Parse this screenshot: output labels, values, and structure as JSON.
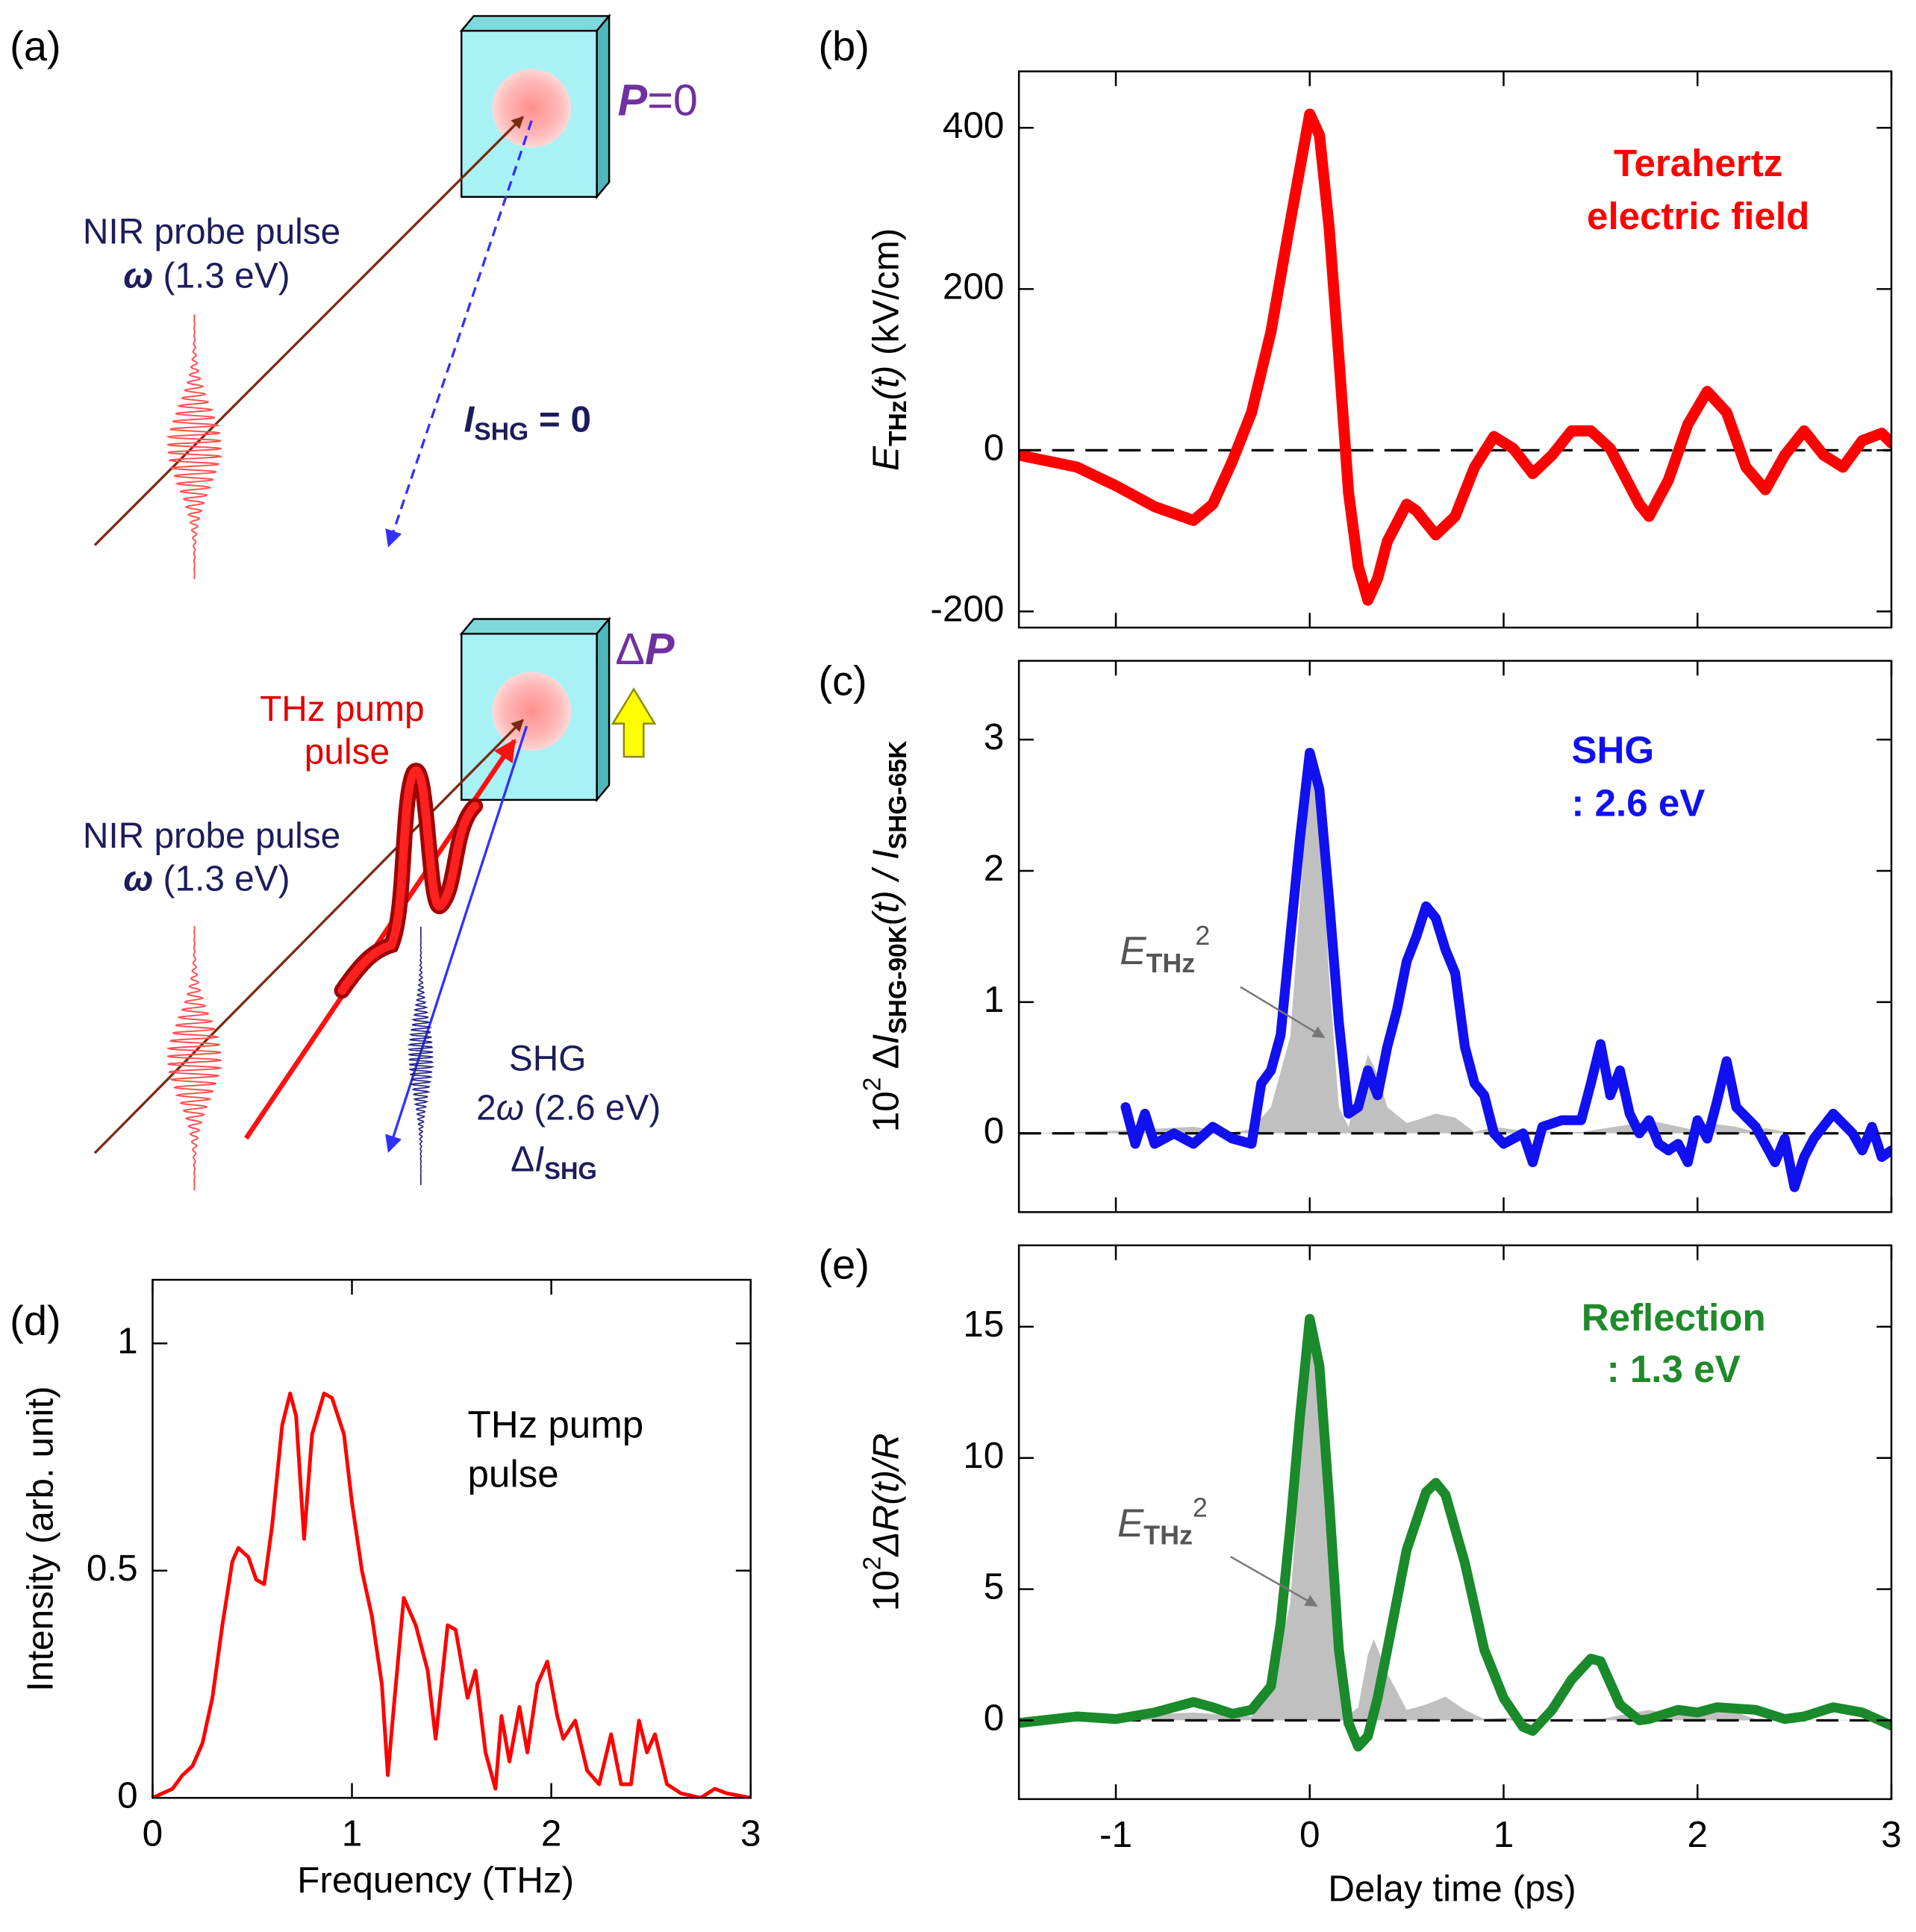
{
  "diagram": {
    "label": "(a)",
    "top": {
      "polarization": [
        "P",
        "=0"
      ],
      "probe": [
        "NIR probe pulse"
      ],
      "probe_energy": [
        "ω",
        "  (1.3 eV)"
      ],
      "shg": [
        "I",
        "SHG",
        " = 0"
      ]
    },
    "bottom": {
      "polarization": [
        "Δ",
        "P"
      ],
      "pump": [
        "THz pump",
        "pulse"
      ],
      "probe": [
        "NIR probe pulse"
      ],
      "probe_energy": [
        "ω",
        "  (1.3 eV)"
      ],
      "shg": [
        "SHG"
      ],
      "shg_energy": [
        "2",
        "ω",
        " (2.6 eV)"
      ],
      "shg_change": [
        "Δ",
        "I",
        "SHG"
      ]
    }
  },
  "chart_data": [
    {
      "type": "line",
      "label": "(b)",
      "ylabel": [
        "E",
        "THz",
        "(t)",
        " (kV/cm)"
      ],
      "annotations": [
        "Terahertz",
        "electric field"
      ],
      "xlim": [
        -1.5,
        3
      ],
      "xticks": [
        -1,
        0,
        1,
        2,
        3
      ],
      "show_xtick_labels": false,
      "ylim": [
        -220,
        470
      ],
      "yticks": [
        -200,
        0,
        200,
        400
      ],
      "zero_line": true,
      "series": [
        {
          "type": "line",
          "color": "#ff0000",
          "x": [
            -1.5,
            -1.2,
            -1.0,
            -0.8,
            -0.6,
            -0.5,
            -0.4,
            -0.3,
            -0.2,
            -0.1,
            0,
            0.05,
            0.1,
            0.15,
            0.2,
            0.25,
            0.3,
            0.35,
            0.4,
            0.5,
            0.55,
            0.65,
            0.75,
            0.85,
            0.95,
            1.05,
            1.15,
            1.25,
            1.35,
            1.45,
            1.55,
            1.7,
            1.75,
            1.85,
            1.95,
            2.05,
            2.15,
            2.25,
            2.35,
            2.45,
            2.55,
            2.65,
            2.75,
            2.85,
            2.95,
            3.0
          ],
          "values": [
            -6,
            -21,
            -44,
            -70,
            -87,
            -67,
            -14,
            47,
            147,
            284,
            417,
            391,
            276,
            116,
            -52,
            -144,
            -186,
            -159,
            -113,
            -67,
            -75,
            -105,
            -82,
            -21,
            17,
            2,
            -29,
            -6,
            24,
            24,
            2,
            -67,
            -82,
            -37,
            32,
            73,
            47,
            -21,
            -49,
            -6,
            24,
            -6,
            -21,
            12,
            21,
            9
          ]
        }
      ]
    },
    {
      "type": "line",
      "label": "(c)",
      "ylabel": [
        "10",
        "2",
        " Δ",
        "I",
        "SHG-90K",
        "(t) / ",
        "I",
        "SHG-65K"
      ],
      "annotations": [
        "SHG",
        ": 2.6 eV"
      ],
      "area_label": [
        "E",
        "THz",
        "2"
      ],
      "xlim": [
        -1.5,
        3
      ],
      "xticks": [
        -1,
        0,
        1,
        2,
        3
      ],
      "show_xtick_labels": false,
      "ylim": [
        -0.6,
        3.6
      ],
      "yticks": [
        0,
        1,
        2,
        3
      ],
      "zero_line": true,
      "series": [
        {
          "type": "area",
          "color": "#c0c0c0",
          "x": [
            -1.5,
            -1.0,
            -0.6,
            -0.4,
            -0.3,
            -0.2,
            -0.1,
            0,
            0.05,
            0.1,
            0.15,
            0.2,
            0.25,
            0.3,
            0.35,
            0.4,
            0.5,
            0.55,
            0.65,
            0.75,
            0.85,
            0.95,
            1.1,
            1.3,
            1.4,
            1.7,
            1.75,
            2.0,
            2.05,
            2.2,
            2.3,
            2.35,
            2.5,
            3.0
          ],
          "values": [
            0,
            0.02,
            0.05,
            0.01,
            0.03,
            0.2,
            0.74,
            2.8,
            2.5,
            1.2,
            0.2,
            0.05,
            0.35,
            0.6,
            0.45,
            0.2,
            0.08,
            0.1,
            0.15,
            0.12,
            0.01,
            0.05,
            0.02,
            0.01,
            0.01,
            0.08,
            0.1,
            0.02,
            0.08,
            0.05,
            0.01,
            0.04,
            0,
            0
          ]
        },
        {
          "type": "line",
          "color": "#1010f0",
          "x": [
            -0.95,
            -0.9,
            -0.85,
            -0.8,
            -0.7,
            -0.6,
            -0.5,
            -0.4,
            -0.3,
            -0.25,
            -0.2,
            -0.15,
            -0.1,
            -0.05,
            0,
            0.05,
            0.1,
            0.15,
            0.2,
            0.25,
            0.3,
            0.35,
            0.4,
            0.45,
            0.5,
            0.55,
            0.6,
            0.65,
            0.7,
            0.75,
            0.8,
            0.85,
            0.9,
            0.95,
            1.0,
            1.1,
            1.15,
            1.2,
            1.3,
            1.4,
            1.45,
            1.5,
            1.55,
            1.6,
            1.65,
            1.7,
            1.75,
            1.8,
            1.85,
            1.9,
            1.95,
            2.0,
            2.05,
            2.1,
            2.15,
            2.2,
            2.3,
            2.4,
            2.45,
            2.5,
            2.55,
            2.6,
            2.7,
            2.8,
            2.85,
            2.9,
            2.95,
            3.0
          ],
          "values": [
            0.2,
            -0.08,
            0.15,
            -0.08,
            0.0,
            -0.08,
            0.05,
            -0.04,
            -0.08,
            0.38,
            0.48,
            0.75,
            1.5,
            2.25,
            2.9,
            2.62,
            1.78,
            0.85,
            0.15,
            0.2,
            0.48,
            0.29,
            0.66,
            0.94,
            1.31,
            1.5,
            1.73,
            1.64,
            1.4,
            1.22,
            0.66,
            0.38,
            0.29,
            0.0,
            -0.08,
            0.0,
            -0.22,
            0.05,
            0.1,
            0.1,
            0.38,
            0.68,
            0.29,
            0.48,
            0.15,
            0.0,
            0.1,
            -0.08,
            -0.13,
            -0.08,
            -0.22,
            0.1,
            -0.04,
            0.24,
            0.55,
            0.2,
            0.05,
            -0.22,
            -0.04,
            -0.41,
            -0.18,
            -0.04,
            0.15,
            0.0,
            -0.13,
            0.05,
            -0.18,
            -0.13
          ]
        }
      ]
    },
    {
      "type": "line",
      "label": "(d)",
      "ylabel": [
        "Intensity (arb. unit)"
      ],
      "xlabel": "Frequency (THz)",
      "annotations": [
        "THz pump",
        "pulse"
      ],
      "xlim": [
        0,
        3
      ],
      "xticks": [
        0,
        1,
        2,
        3
      ],
      "show_xtick_labels": true,
      "ylim": [
        0,
        1.14
      ],
      "yticks": [
        0,
        0.5,
        1
      ],
      "zero_line": false,
      "series": [
        {
          "type": "line",
          "color": "#ff0000",
          "x": [
            0,
            0.05,
            0.1,
            0.15,
            0.2,
            0.25,
            0.3,
            0.35,
            0.4,
            0.43,
            0.48,
            0.52,
            0.56,
            0.6,
            0.65,
            0.69,
            0.72,
            0.76,
            0.8,
            0.86,
            0.9,
            0.96,
            1.0,
            1.05,
            1.1,
            1.15,
            1.18,
            1.21,
            1.26,
            1.32,
            1.38,
            1.42,
            1.48,
            1.52,
            1.58,
            1.62,
            1.67,
            1.72,
            1.75,
            1.79,
            1.84,
            1.88,
            1.93,
            1.98,
            2.03,
            2.06,
            2.12,
            2.18,
            2.24,
            2.3,
            2.35,
            2.4,
            2.44,
            2.48,
            2.52,
            2.58,
            2.65,
            2.75,
            2.82,
            2.88,
            3.0
          ],
          "values": [
            0.0,
            0.01,
            0.02,
            0.05,
            0.07,
            0.12,
            0.22,
            0.38,
            0.52,
            0.55,
            0.53,
            0.48,
            0.47,
            0.6,
            0.82,
            0.89,
            0.84,
            0.57,
            0.8,
            0.89,
            0.88,
            0.8,
            0.65,
            0.5,
            0.4,
            0.25,
            0.05,
            0.2,
            0.44,
            0.38,
            0.28,
            0.13,
            0.38,
            0.37,
            0.22,
            0.28,
            0.1,
            0.02,
            0.18,
            0.08,
            0.2,
            0.1,
            0.25,
            0.3,
            0.18,
            0.13,
            0.17,
            0.06,
            0.03,
            0.14,
            0.03,
            0.03,
            0.17,
            0.1,
            0.14,
            0.03,
            0.01,
            0.0,
            0.02,
            0.01,
            0.0
          ]
        }
      ]
    },
    {
      "type": "line",
      "label": "(e)",
      "ylabel": [
        "10",
        "2",
        "ΔR(t)/R"
      ],
      "xlabel": "Delay time (ps)",
      "annotations": [
        "Reflection",
        ": 1.3 eV"
      ],
      "area_label": [
        "E",
        "THz",
        "2"
      ],
      "xlim": [
        -1.5,
        3
      ],
      "xticks": [
        -1,
        0,
        1,
        2,
        3
      ],
      "show_xtick_labels": true,
      "ylim": [
        -3,
        18.1
      ],
      "yticks": [
        0,
        5,
        10,
        15
      ],
      "zero_line": true,
      "series": [
        {
          "type": "area",
          "color": "#c0c0c0",
          "x": [
            -1.5,
            -0.6,
            -0.3,
            -0.2,
            -0.1,
            0,
            0.05,
            0.1,
            0.15,
            0.2,
            0.25,
            0.3,
            0.33,
            0.4,
            0.5,
            0.6,
            0.7,
            0.8,
            0.9,
            1.0,
            1.2,
            1.5,
            1.75,
            1.9,
            2.05,
            2.2,
            2.3,
            3.0
          ],
          "values": [
            0,
            0.3,
            0.15,
            1,
            4.5,
            15,
            13.5,
            7,
            1.5,
            0.2,
            0.5,
            2.5,
            3.1,
            1.8,
            0.4,
            0.6,
            0.9,
            0.4,
            0.05,
            0.1,
            0,
            0.05,
            0.4,
            0.2,
            0.4,
            0.3,
            0.05,
            0
          ]
        },
        {
          "type": "line",
          "color": "#1a8a2a",
          "x": [
            -1.5,
            -1.2,
            -1.0,
            -0.8,
            -0.6,
            -0.5,
            -0.4,
            -0.3,
            -0.2,
            -0.15,
            -0.1,
            -0.05,
            0,
            0.05,
            0.1,
            0.15,
            0.2,
            0.25,
            0.3,
            0.35,
            0.4,
            0.5,
            0.6,
            0.65,
            0.7,
            0.8,
            0.9,
            1.0,
            1.1,
            1.15,
            1.25,
            1.35,
            1.45,
            1.5,
            1.6,
            1.7,
            1.75,
            1.9,
            2.0,
            2.1,
            2.3,
            2.45,
            2.55,
            2.7,
            2.85,
            3.0
          ],
          "values": [
            -0.1,
            0.15,
            0.05,
            0.3,
            0.7,
            0.5,
            0.25,
            0.4,
            1.3,
            3.7,
            7.4,
            11.6,
            15.3,
            13.5,
            8.4,
            2.7,
            -0.1,
            -1.0,
            -0.6,
            0.85,
            2.7,
            6.5,
            8.7,
            9.05,
            8.6,
            6.0,
            2.7,
            0.85,
            -0.25,
            -0.4,
            0.4,
            1.55,
            2.35,
            2.25,
            0.6,
            0,
            0.05,
            0.4,
            0.3,
            0.5,
            0.4,
            0.05,
            0.15,
            0.5,
            0.3,
            -0.2
          ]
        }
      ]
    }
  ]
}
